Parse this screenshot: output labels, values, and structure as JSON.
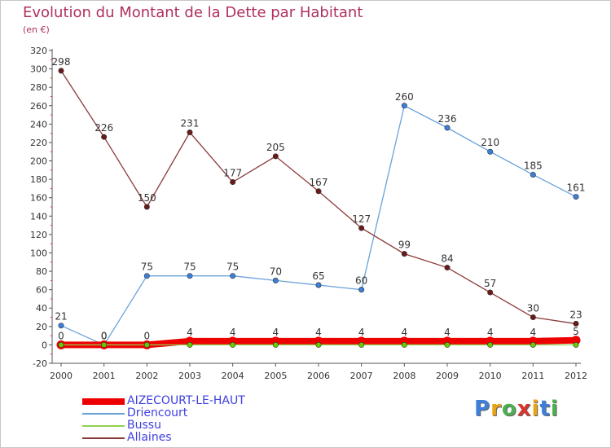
{
  "title": "Evolution du Montant de la Dette par Habitant",
  "subtitle": "(en €)",
  "logo": {
    "letters": [
      "P",
      "r",
      "o",
      "x",
      "i",
      "t",
      "i"
    ],
    "colors": [
      "#3d7fd9",
      "#e8a317",
      "#4caf50",
      "#d9342b",
      "#e8a317",
      "#3d7fd9",
      "#4caf50"
    ]
  },
  "chart_data": {
    "type": "line",
    "x": [
      2000,
      2001,
      2002,
      2003,
      2004,
      2005,
      2006,
      2007,
      2008,
      2009,
      2010,
      2011,
      2012
    ],
    "x_tick_labels": [
      "2000",
      "2001",
      "2002",
      "2003",
      "2004",
      "2005",
      "2006",
      "2007",
      "2008",
      "2009",
      "2010",
      "2011",
      "2012"
    ],
    "ylim": [
      -20,
      320
    ],
    "y_ticks": [
      -20,
      0,
      20,
      40,
      60,
      80,
      100,
      120,
      140,
      160,
      180,
      200,
      220,
      240,
      260,
      280,
      300,
      320
    ],
    "grid": false,
    "legend_position": "bottom-left",
    "series": [
      {
        "name": "AIZECOURT-LE-HAUT",
        "values": [
          0,
          0,
          0,
          4,
          4,
          4,
          4,
          4,
          4,
          4,
          4,
          4,
          5
        ],
        "data_labels": [
          "0",
          "0",
          "0",
          "4",
          "4",
          "4",
          "4",
          "4",
          "4",
          "4",
          "4",
          "4",
          "5"
        ],
        "color": "#ee0000",
        "style": "thick"
      },
      {
        "name": "Driencourt",
        "values": [
          21,
          0,
          75,
          75,
          75,
          70,
          65,
          60,
          260,
          236,
          210,
          185,
          161
        ],
        "data_labels": [
          "21",
          "0",
          "75",
          "75",
          "75",
          "70",
          "65",
          "60",
          "260",
          "236",
          "210",
          "185",
          "161"
        ],
        "color": "#6aa3d9",
        "marker": "#3d7fd9"
      },
      {
        "name": "Bussu",
        "values": [
          0,
          0,
          0,
          0,
          0,
          0,
          0,
          0,
          0,
          0,
          0,
          0,
          0
        ],
        "color": "#8fd14f",
        "marker": "#66cc00"
      },
      {
        "name": "Allaines",
        "values": [
          298,
          226,
          150,
          231,
          177,
          205,
          167,
          127,
          99,
          84,
          57,
          30,
          23
        ],
        "data_labels": [
          "298",
          "226",
          "150",
          "231",
          "177",
          "205",
          "167",
          "127",
          "99",
          "84",
          "57",
          "30",
          "23"
        ],
        "color": "#8b3a3a",
        "marker": "#6b1a1a"
      }
    ]
  }
}
